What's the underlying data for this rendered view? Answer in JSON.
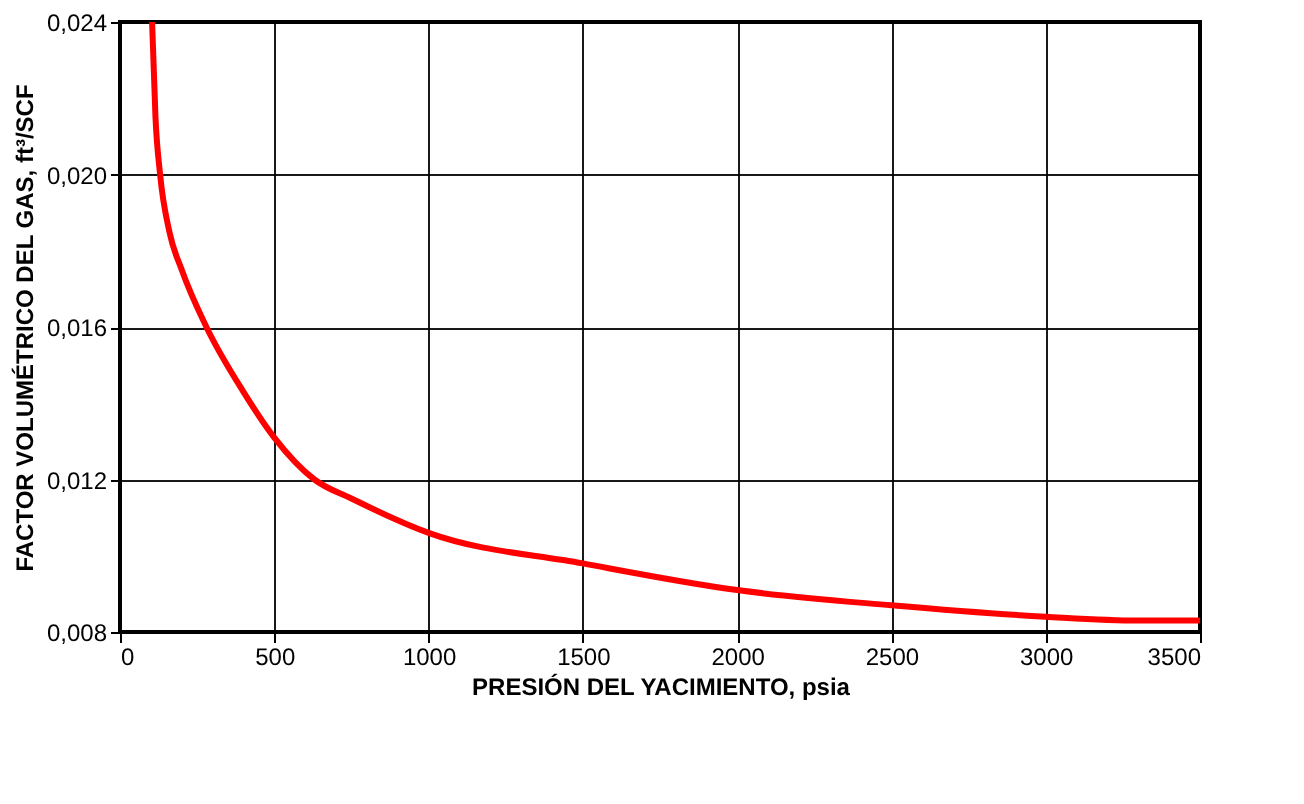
{
  "chart_data": {
    "type": "line",
    "xlabel": "PRESIÓN DEL YACIMIENTO, psia",
    "ylabel": "FACTOR VOLUMÉTRICO DEL GAS, ft³/SCF",
    "x": [
      104,
      115,
      130,
      160,
      200,
      280,
      400,
      500,
      630,
      750,
      1000,
      1500,
      2000,
      2500,
      3000,
      3300,
      3500
    ],
    "series": [
      {
        "color": "#ff0000",
        "values": [
          0.024,
          0.0215,
          0.02,
          0.0185,
          0.0175,
          0.016,
          0.0143,
          0.0131,
          0.012,
          0.0115,
          0.0106,
          0.0098,
          0.0091,
          0.0087,
          0.0084,
          0.0083,
          0.0083
        ]
      }
    ],
    "xlim": [
      0,
      3500
    ],
    "xticks": [
      0,
      500,
      1000,
      1500,
      2000,
      2500,
      3000,
      3500
    ],
    "ylim": [
      0.008,
      0.024
    ],
    "yticks": [
      {
        "value": 0.008,
        "label": "0,008"
      },
      {
        "value": 0.012,
        "label": "0,012"
      },
      {
        "value": 0.016,
        "label": "0,016"
      },
      {
        "value": 0.02,
        "label": "0,020"
      },
      {
        "value": 0.024,
        "label": "0,024"
      }
    ],
    "grid": true,
    "marker": "none",
    "line_style": "solid"
  }
}
